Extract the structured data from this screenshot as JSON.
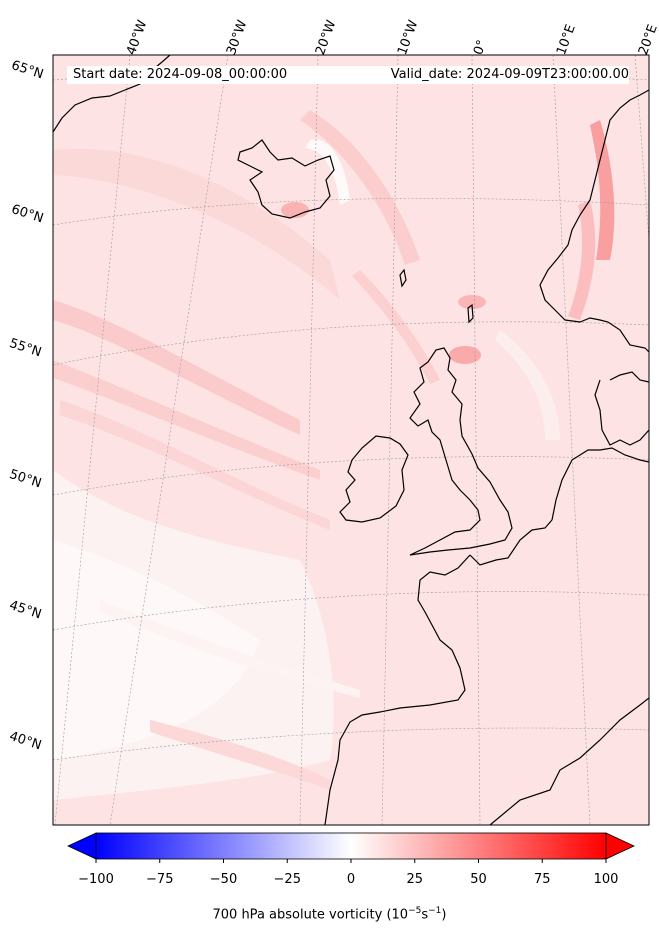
{
  "header": {
    "start_date": "Start date: 2024-09-08_00:00:00",
    "valid_date": "Valid_date: 2024-09-09T23:00:00.00"
  },
  "longitude_labels": [
    "40°W",
    "30°W",
    "20°W",
    "10°W",
    "0°",
    "10°E",
    "20°E"
  ],
  "latitude_labels": [
    "65°N",
    "60°N",
    "55°N",
    "50°N",
    "45°N",
    "40°N"
  ],
  "colorbar": {
    "min": -100,
    "max": 100,
    "ticks": [
      "−100",
      "−75",
      "−50",
      "−25",
      "0",
      "25",
      "50",
      "75",
      "100"
    ],
    "title_prefix": "700 hPa absolute vorticity (10",
    "title_exp1": "−5",
    "title_mid": "s",
    "title_exp2": "−1",
    "title_suffix": ")",
    "colormap": "bwr",
    "low_color": "#0000ff",
    "mid_color": "#ffffff",
    "high_color": "#ff0000"
  },
  "map": {
    "projection": "lambert-conformal",
    "field": "700 hPa absolute vorticity",
    "background_level_color": "#fde4e4",
    "gridlines": true
  }
}
